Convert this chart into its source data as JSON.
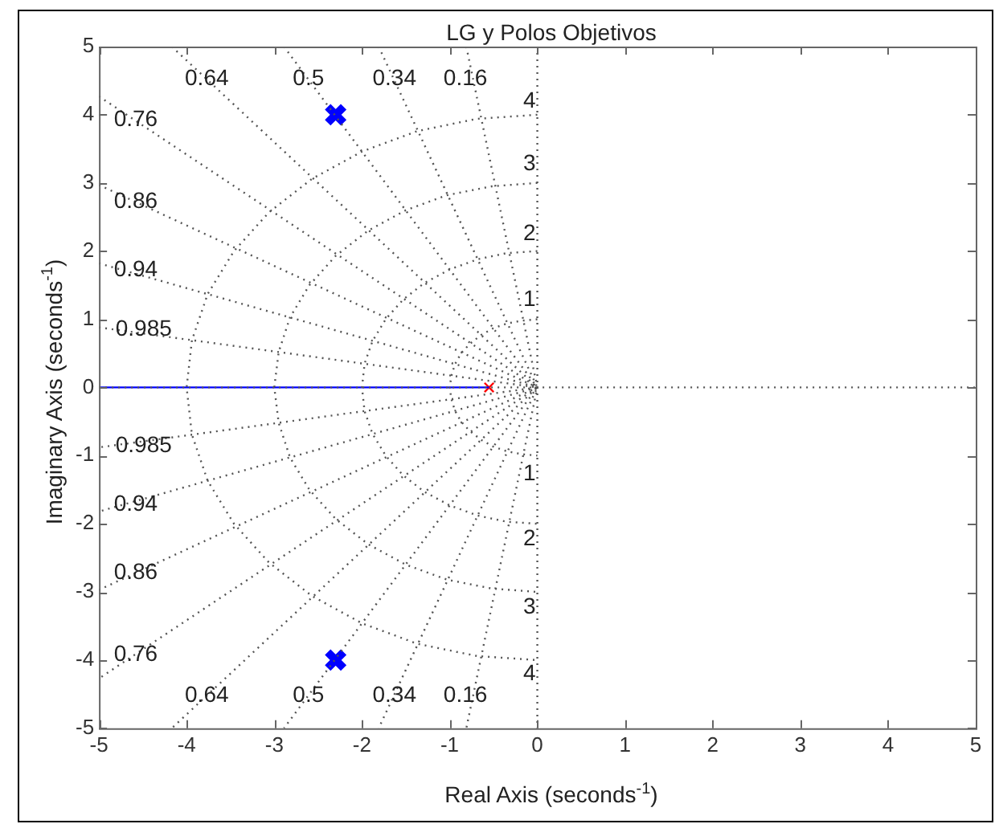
{
  "chart_data": {
    "type": "line",
    "title": "LG y Polos Objetivos",
    "xlabel": "Real Axis (seconds$^{-1}$)",
    "ylabel": "Imaginary Axis (seconds$^{-1}$)",
    "xlim": [
      -5,
      5
    ],
    "ylim": [
      -5,
      5
    ],
    "xticks": [
      -5,
      -4,
      -3,
      -2,
      -1,
      0,
      1,
      2,
      3,
      4,
      5
    ],
    "yticks": [
      -5,
      -4,
      -3,
      -2,
      -1,
      0,
      1,
      2,
      3,
      4,
      5
    ],
    "grid": false,
    "legend": false,
    "series": [
      {
        "type": "line",
        "color": "#555555",
        "line_style": "dotted",
        "marker": "none",
        "x": [
          -0.81,
          0,
          -0.81
        ],
        "values": [
          5,
          0,
          -5
        ]
      },
      {
        "type": "line",
        "color": "#555555",
        "line_style": "dotted",
        "marker": "none",
        "x": [
          -1.81,
          0,
          -1.81
        ],
        "values": [
          5,
          0,
          -5
        ]
      },
      {
        "type": "line",
        "color": "#555555",
        "line_style": "dotted",
        "marker": "none",
        "x": [
          -2.89,
          0,
          -2.89
        ],
        "values": [
          5,
          0,
          -5
        ]
      },
      {
        "type": "line",
        "color": "#555555",
        "line_style": "dotted",
        "marker": "none",
        "x": [
          -4.17,
          0,
          -4.17
        ],
        "values": [
          5,
          0,
          -5
        ]
      },
      {
        "type": "line",
        "color": "#555555",
        "line_style": "dotted",
        "marker": "none",
        "x": [
          -5,
          0,
          -5
        ],
        "values": [
          4.27,
          0,
          -4.27
        ]
      },
      {
        "type": "line",
        "color": "#555555",
        "line_style": "dotted",
        "marker": "none",
        "x": [
          -5,
          0,
          -5
        ],
        "values": [
          2.97,
          0,
          -2.97
        ]
      },
      {
        "type": "line",
        "color": "#555555",
        "line_style": "dotted",
        "marker": "none",
        "x": [
          -5,
          0,
          -5
        ],
        "values": [
          1.82,
          0,
          -1.82
        ]
      },
      {
        "type": "line",
        "color": "#555555",
        "line_style": "dotted",
        "marker": "none",
        "x": [
          -5,
          0,
          -5
        ],
        "values": [
          0.88,
          0,
          -0.88
        ]
      },
      {
        "type": "line",
        "color": "#555555",
        "line_style": "dotted",
        "marker": "none",
        "x": [
          0,
          -0.17,
          -0.34,
          -0.5,
          -0.64,
          -0.77,
          -0.87,
          -0.94,
          -0.98,
          -1,
          -0.98,
          -0.94,
          -0.87,
          -0.77,
          -0.64,
          -0.5,
          -0.34,
          -0.17,
          0
        ],
        "values": [
          1,
          0.98,
          0.94,
          0.87,
          0.77,
          0.64,
          0.5,
          0.34,
          0.17,
          0,
          -0.17,
          -0.34,
          -0.5,
          -0.64,
          -0.77,
          -0.87,
          -0.94,
          -0.98,
          -1
        ]
      },
      {
        "type": "line",
        "color": "#555555",
        "line_style": "dotted",
        "marker": "none",
        "x": [
          0,
          -0.35,
          -0.68,
          -1,
          -1.29,
          -1.53,
          -1.73,
          -1.88,
          -1.97,
          -2,
          -1.97,
          -1.88,
          -1.73,
          -1.53,
          -1.29,
          -1,
          -0.68,
          -0.35,
          0
        ],
        "values": [
          2,
          1.97,
          1.88,
          1.73,
          1.53,
          1.29,
          1,
          0.68,
          0.35,
          0,
          -0.35,
          -0.68,
          -1,
          -1.29,
          -1.53,
          -1.73,
          -1.88,
          -1.97,
          -2
        ]
      },
      {
        "type": "line",
        "color": "#555555",
        "line_style": "dotted",
        "marker": "none",
        "x": [
          0,
          -0.52,
          -1.03,
          -1.5,
          -1.93,
          -2.3,
          -2.6,
          -2.82,
          -2.95,
          -3,
          -2.95,
          -2.82,
          -2.6,
          -2.3,
          -1.93,
          -1.5,
          -1.03,
          -0.52,
          0
        ],
        "values": [
          3,
          2.95,
          2.82,
          2.6,
          2.3,
          1.93,
          1.5,
          1.03,
          0.52,
          0,
          -0.52,
          -1.03,
          -1.5,
          -1.93,
          -2.3,
          -2.6,
          -2.82,
          -2.95,
          -3
        ]
      },
      {
        "type": "line",
        "color": "#555555",
        "line_style": "dotted",
        "marker": "none",
        "x": [
          0,
          -0.69,
          -1.37,
          -2,
          -2.57,
          -3.06,
          -3.46,
          -3.76,
          -3.94,
          -4,
          -3.94,
          -3.76,
          -3.46,
          -3.06,
          -2.57,
          -2,
          -1.37,
          -0.69,
          0
        ],
        "values": [
          4,
          3.94,
          3.76,
          3.46,
          3.06,
          2.57,
          2,
          1.37,
          0.69,
          0,
          -0.69,
          -1.37,
          -2,
          -2.57,
          -3.06,
          -3.46,
          -3.76,
          -3.94,
          -4
        ]
      },
      {
        "type": "line",
        "color": "#555555",
        "line_style": "dotted",
        "marker": "none",
        "x": [
          0,
          0
        ],
        "values": [
          5,
          -5
        ]
      },
      {
        "type": "line",
        "color": "#555555",
        "line_style": "dotted",
        "marker": "none",
        "x": [
          -5,
          5
        ],
        "values": [
          0,
          0
        ]
      },
      {
        "type": "line",
        "color": "#0000ff",
        "line_style": "solid",
        "marker": "none",
        "x": [
          -5,
          -0.55
        ],
        "values": [
          0,
          0
        ]
      },
      {
        "type": "scatter",
        "color": "#ff0000",
        "marker": "cross",
        "x": [
          -0.55
        ],
        "values": [
          0
        ]
      },
      {
        "type": "scatter",
        "color": "#0000ff",
        "marker": "cross",
        "x": [
          -2.3,
          -2.3
        ],
        "values": [
          4,
          -4
        ]
      }
    ],
    "annotations": [
      {
        "text": "0.64",
        "x": -3.77,
        "y": 4.52
      },
      {
        "text": "0.5",
        "x": -2.61,
        "y": 4.52
      },
      {
        "text": "0.34",
        "x": -1.63,
        "y": 4.52
      },
      {
        "text": "0.16",
        "x": -0.82,
        "y": 4.52
      },
      {
        "text": "0.76",
        "x": -4.58,
        "y": 3.92
      },
      {
        "text": "0.86",
        "x": -4.58,
        "y": 2.72
      },
      {
        "text": "0.94",
        "x": -4.58,
        "y": 1.72
      },
      {
        "text": "0.985",
        "x": -4.49,
        "y": 0.85
      },
      {
        "text": "0.985",
        "x": -4.49,
        "y": -0.86
      },
      {
        "text": "0.94",
        "x": -4.58,
        "y": -1.72
      },
      {
        "text": "0.86",
        "x": -4.58,
        "y": -2.72
      },
      {
        "text": "0.76",
        "x": -4.58,
        "y": -3.92
      },
      {
        "text": "0.64",
        "x": -3.77,
        "y": -4.52
      },
      {
        "text": "0.5",
        "x": -2.61,
        "y": -4.52
      },
      {
        "text": "0.34",
        "x": -1.63,
        "y": -4.52
      },
      {
        "text": "0.16",
        "x": -0.82,
        "y": -4.52
      },
      {
        "text": "4",
        "x": -0.09,
        "y": 4.2
      },
      {
        "text": "3",
        "x": -0.09,
        "y": 3.28
      },
      {
        "text": "2",
        "x": -0.09,
        "y": 2.25
      },
      {
        "text": "1",
        "x": -0.09,
        "y": 1.29
      },
      {
        "text": "1",
        "x": -0.09,
        "y": -1.27
      },
      {
        "text": "2",
        "x": -0.09,
        "y": -2.23
      },
      {
        "text": "3",
        "x": -0.09,
        "y": -3.23
      },
      {
        "text": "4",
        "x": -0.09,
        "y": -4.21
      }
    ]
  }
}
